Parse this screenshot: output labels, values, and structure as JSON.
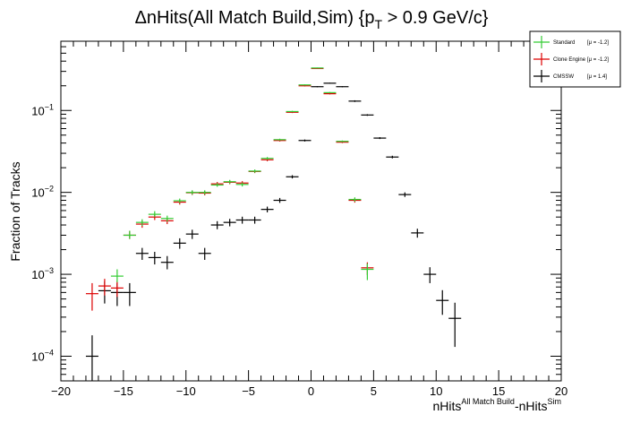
{
  "chart_data": {
    "type": "scatter",
    "title": "ΔnHits(All Match Build,Sim) {p_T > 0.9 GeV/c}",
    "title_parts": {
      "main": "ΔnHits(All Match Build,Sim) {p",
      "sub": "T",
      "tail": " > 0.9 GeV/c}"
    },
    "ylabel": "Fraction of Tracks",
    "xlabel_parts": {
      "a": "nHits",
      "a_sup": "All Match Build",
      "b": "-nHits",
      "b_sup": "Sim"
    },
    "xlim": [
      -20,
      20
    ],
    "ylim": [
      5e-05,
      0.7
    ],
    "y_scale": "log",
    "x_ticks": [
      "−20",
      "−15",
      "−10",
      "−5",
      "0",
      "5",
      "10",
      "15",
      "20"
    ],
    "y_ticks": [
      {
        "base": "10",
        "exp": "−4",
        "value": 0.0001
      },
      {
        "base": "10",
        "exp": "−3",
        "value": 0.001
      },
      {
        "base": "10",
        "exp": "−2",
        "value": 0.01
      },
      {
        "base": "10",
        "exp": "−1",
        "value": 0.1
      }
    ],
    "grid": false,
    "legend_position": "top-right",
    "series": [
      {
        "name": "Standard",
        "stat": "[μ = -1.2]",
        "color": "#33cc33",
        "points": [
          {
            "x": -15,
            "y": 0.00095,
            "lo": 0.0008,
            "hi": 0.00115
          },
          {
            "x": -14,
            "y": 0.003,
            "lo": 0.0027,
            "hi": 0.0034
          },
          {
            "x": -13,
            "y": 0.0043,
            "lo": 0.0039,
            "hi": 0.0047
          },
          {
            "x": -12,
            "y": 0.0054,
            "lo": 0.005,
            "hi": 0.0059
          },
          {
            "x": -11,
            "y": 0.0048,
            "lo": 0.0044,
            "hi": 0.0052
          },
          {
            "x": -10,
            "y": 0.0079,
            "lo": 0.0074,
            "hi": 0.0084
          },
          {
            "x": -9,
            "y": 0.01,
            "lo": 0.0094,
            "hi": 0.0106
          },
          {
            "x": -8,
            "y": 0.01,
            "lo": 0.0094,
            "hi": 0.0106
          },
          {
            "x": -7,
            "y": 0.0123,
            "lo": 0.0117,
            "hi": 0.013
          },
          {
            "x": -6,
            "y": 0.0135,
            "lo": 0.0128,
            "hi": 0.0142
          },
          {
            "x": -5,
            "y": 0.0125,
            "lo": 0.0118,
            "hi": 0.0132
          },
          {
            "x": -4,
            "y": 0.0182,
            "lo": 0.0174,
            "hi": 0.019
          },
          {
            "x": -3,
            "y": 0.026,
            "lo": 0.025,
            "hi": 0.027
          },
          {
            "x": -2,
            "y": 0.044,
            "lo": 0.0428,
            "hi": 0.0452
          },
          {
            "x": -1,
            "y": 0.097,
            "lo": 0.095,
            "hi": 0.099
          },
          {
            "x": 0,
            "y": 0.205,
            "lo": 0.202,
            "hi": 0.208
          },
          {
            "x": 1,
            "y": 0.33,
            "lo": 0.326,
            "hi": 0.334
          },
          {
            "x": 2,
            "y": 0.165,
            "lo": 0.162,
            "hi": 0.168
          },
          {
            "x": 3,
            "y": 0.042,
            "lo": 0.041,
            "hi": 0.043
          },
          {
            "x": 4,
            "y": 0.0082,
            "lo": 0.0077,
            "hi": 0.0087
          },
          {
            "x": 5,
            "y": 0.00115,
            "lo": 0.00085,
            "hi": 0.00135
          }
        ]
      },
      {
        "name": "Clone Engine",
        "stat": "[μ = -1.2]",
        "color": "#dd0000",
        "points": [
          {
            "x": -17,
            "y": 0.00058,
            "lo": 0.00036,
            "hi": 0.00078
          },
          {
            "x": -16,
            "y": 0.00072,
            "lo": 0.00055,
            "hi": 0.00088
          },
          {
            "x": -15,
            "y": 0.00068,
            "lo": 0.00053,
            "hi": 0.00083
          },
          {
            "x": -14,
            "y": 0.003,
            "lo": 0.0027,
            "hi": 0.0034
          },
          {
            "x": -13,
            "y": 0.0041,
            "lo": 0.0037,
            "hi": 0.0045
          },
          {
            "x": -12,
            "y": 0.005,
            "lo": 0.0046,
            "hi": 0.0055
          },
          {
            "x": -11,
            "y": 0.0045,
            "lo": 0.0041,
            "hi": 0.0049
          },
          {
            "x": -10,
            "y": 0.0076,
            "lo": 0.0071,
            "hi": 0.0081
          },
          {
            "x": -9,
            "y": 0.0099,
            "lo": 0.0093,
            "hi": 0.0105
          },
          {
            "x": -8,
            "y": 0.0098,
            "lo": 0.0092,
            "hi": 0.0104
          },
          {
            "x": -7,
            "y": 0.0127,
            "lo": 0.012,
            "hi": 0.0134
          },
          {
            "x": -6,
            "y": 0.0133,
            "lo": 0.0126,
            "hi": 0.014
          },
          {
            "x": -5,
            "y": 0.013,
            "lo": 0.0123,
            "hi": 0.0137
          },
          {
            "x": -4,
            "y": 0.018,
            "lo": 0.0172,
            "hi": 0.0188
          },
          {
            "x": -3,
            "y": 0.025,
            "lo": 0.024,
            "hi": 0.026
          },
          {
            "x": -2,
            "y": 0.043,
            "lo": 0.0418,
            "hi": 0.0442
          },
          {
            "x": -1,
            "y": 0.095,
            "lo": 0.093,
            "hi": 0.097
          },
          {
            "x": 0,
            "y": 0.2,
            "lo": 0.197,
            "hi": 0.203
          },
          {
            "x": 1,
            "y": 0.325,
            "lo": 0.321,
            "hi": 0.329
          },
          {
            "x": 2,
            "y": 0.16,
            "lo": 0.157,
            "hi": 0.163
          },
          {
            "x": 3,
            "y": 0.041,
            "lo": 0.04,
            "hi": 0.042
          },
          {
            "x": 4,
            "y": 0.008,
            "lo": 0.0075,
            "hi": 0.0085
          },
          {
            "x": 5,
            "y": 0.0012,
            "lo": 0.00098,
            "hi": 0.0014
          }
        ]
      },
      {
        "name": "CMSSW",
        "stat": "[μ = 1.4]",
        "color": "#000000",
        "points": [
          {
            "x": -17,
            "y": 0.0001,
            "lo": 5e-05,
            "hi": 0.00018
          },
          {
            "x": -16,
            "y": 0.00063,
            "lo": 0.00044,
            "hi": 0.00082
          },
          {
            "x": -15,
            "y": 0.0006,
            "lo": 0.00041,
            "hi": 0.00078
          },
          {
            "x": -14,
            "y": 0.0006,
            "lo": 0.00041,
            "hi": 0.00078
          },
          {
            "x": -13,
            "y": 0.0018,
            "lo": 0.0015,
            "hi": 0.0021
          },
          {
            "x": -12,
            "y": 0.0016,
            "lo": 0.00132,
            "hi": 0.00188
          },
          {
            "x": -11,
            "y": 0.0014,
            "lo": 0.00115,
            "hi": 0.00167
          },
          {
            "x": -10,
            "y": 0.0024,
            "lo": 0.00205,
            "hi": 0.00275
          },
          {
            "x": -9,
            "y": 0.0031,
            "lo": 0.0027,
            "hi": 0.0035
          },
          {
            "x": -8,
            "y": 0.0018,
            "lo": 0.0015,
            "hi": 0.0021
          },
          {
            "x": -7,
            "y": 0.004,
            "lo": 0.00355,
            "hi": 0.00445
          },
          {
            "x": -6,
            "y": 0.0043,
            "lo": 0.00385,
            "hi": 0.00475
          },
          {
            "x": -5,
            "y": 0.0046,
            "lo": 0.00415,
            "hi": 0.00505
          },
          {
            "x": -4,
            "y": 0.0046,
            "lo": 0.00415,
            "hi": 0.00505
          },
          {
            "x": -3,
            "y": 0.0062,
            "lo": 0.0057,
            "hi": 0.0067
          },
          {
            "x": -2,
            "y": 0.008,
            "lo": 0.00745,
            "hi": 0.00855
          },
          {
            "x": -1,
            "y": 0.0155,
            "lo": 0.0148,
            "hi": 0.0162
          },
          {
            "x": 0,
            "y": 0.043,
            "lo": 0.0418,
            "hi": 0.0442
          },
          {
            "x": 1,
            "y": 0.195,
            "lo": 0.192,
            "hi": 0.198
          },
          {
            "x": 2,
            "y": 0.215,
            "lo": 0.212,
            "hi": 0.218
          },
          {
            "x": 3,
            "y": 0.195,
            "lo": 0.192,
            "hi": 0.198
          },
          {
            "x": 4,
            "y": 0.13,
            "lo": 0.127,
            "hi": 0.133
          },
          {
            "x": 5,
            "y": 0.088,
            "lo": 0.086,
            "hi": 0.09
          },
          {
            "x": 6,
            "y": 0.046,
            "lo": 0.0448,
            "hi": 0.0472
          },
          {
            "x": 7,
            "y": 0.027,
            "lo": 0.026,
            "hi": 0.028
          },
          {
            "x": 8,
            "y": 0.0094,
            "lo": 0.0088,
            "hi": 0.01
          },
          {
            "x": 9,
            "y": 0.0032,
            "lo": 0.0028,
            "hi": 0.0036
          },
          {
            "x": 10,
            "y": 0.001,
            "lo": 0.00078,
            "hi": 0.00122
          },
          {
            "x": 11,
            "y": 0.00048,
            "lo": 0.00032,
            "hi": 0.00064
          },
          {
            "x": 12,
            "y": 0.00029,
            "lo": 0.00013,
            "hi": 0.00045
          }
        ]
      }
    ]
  }
}
